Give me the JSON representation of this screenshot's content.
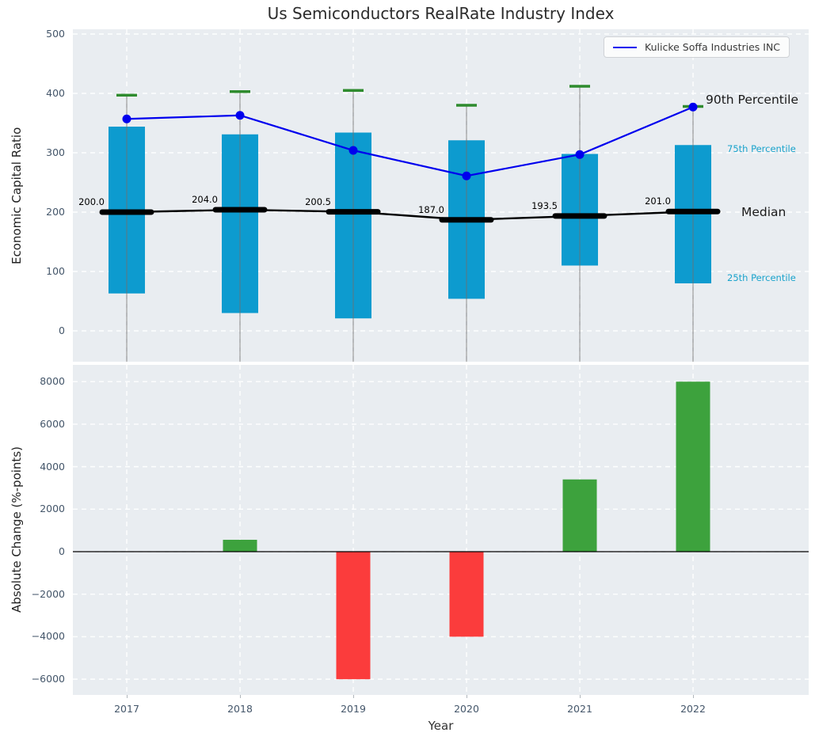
{
  "title": "Us Semiconductors RealRate Industry Index",
  "legend": {
    "label": "Kulicke Soffa Industries INC"
  },
  "annotations": {
    "p90": "90th Percentile",
    "p75": "75th Percentile",
    "median": "Median",
    "p25": "25th Percentile"
  },
  "colors": {
    "box": "#0d9bcf",
    "whisker_cap_green": "#2e8b2e",
    "whisker_line_gray": "#707070",
    "median_black": "#000000",
    "company_line_blue": "#0000ee",
    "bar_positive_green": "#3da23d",
    "bar_negative_red": "#fb3c3c",
    "axes_background": "#e9edf1",
    "grid_white": "#ffffff",
    "tick_label": "#44566a",
    "annotation_cyan": "#19a3cc"
  },
  "chart_data": [
    {
      "type": "box-line",
      "title": "Us Semiconductors RealRate Industry Index",
      "ylabel": "Economic Capital Ratio",
      "categories": [
        "2017",
        "2018",
        "2019",
        "2020",
        "2021",
        "2022"
      ],
      "ylim": [
        -52,
        508
      ],
      "grid": true,
      "yticks": {
        "values": [
          0,
          100,
          200,
          300,
          400,
          500
        ],
        "labels": [
          "0",
          "100",
          "200",
          "300",
          "400",
          "500"
        ]
      },
      "legend_position": "upper right",
      "series": [
        {
          "name": "90th Percentile (whisker top)",
          "values": [
            397,
            403,
            405,
            380,
            412,
            378
          ]
        },
        {
          "name": "75th Percentile (box top)",
          "values": [
            344,
            331,
            334,
            321,
            298,
            313
          ]
        },
        {
          "name": "Median",
          "values": [
            200.0,
            204.0,
            200.5,
            187.0,
            193.5,
            201.0
          ],
          "labels": [
            "200.0",
            "204.0",
            "200.5",
            "187.0",
            "193.5",
            "201.0"
          ]
        },
        {
          "name": "25th Percentile (box bottom)",
          "values": [
            63,
            30,
            21,
            54,
            110,
            80
          ]
        },
        {
          "name": "Kulicke Soffa Industries INC",
          "values": [
            357,
            363,
            304,
            261,
            297,
            377
          ]
        }
      ]
    },
    {
      "type": "bar",
      "xlabel": "Year",
      "ylabel": "Absolute Change (%-points)",
      "categories": [
        "2017",
        "2018",
        "2019",
        "2020",
        "2021",
        "2022"
      ],
      "values": [
        0,
        560,
        -6000,
        -4000,
        3400,
        8000
      ],
      "ylim": [
        -6740,
        8790
      ],
      "grid": true,
      "yticks": {
        "values": [
          8000,
          6000,
          4000,
          2000,
          0,
          -2000,
          -4000,
          -6000
        ],
        "labels": [
          "8000",
          "6000",
          "4000",
          "2000",
          "0",
          "−2000",
          "−4000",
          "−6000"
        ]
      }
    }
  ]
}
